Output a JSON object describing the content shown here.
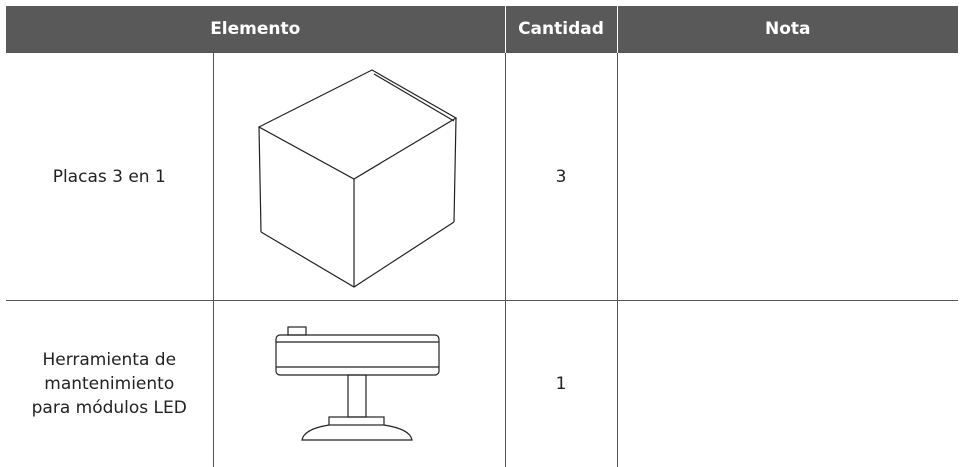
{
  "table": {
    "header": [
      "Elemento",
      "Cantidad",
      "Nota"
    ],
    "rows": [
      {
        "name": "Placas 3 en 1",
        "quantity": 3
      },
      {
        "name": "Herramienta de mantenimiento para módulos LED",
        "quantity": 1
      }
    ]
  }
}
